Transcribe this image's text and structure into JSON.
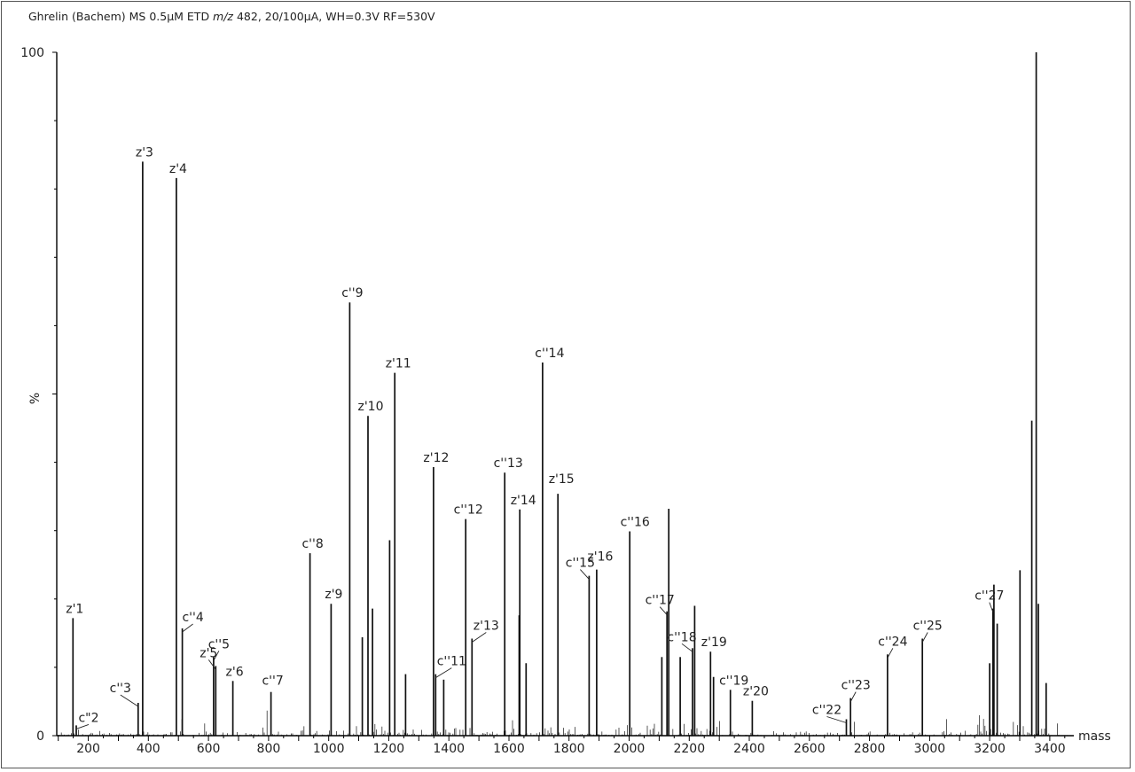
{
  "title_parts": {
    "pre": "Ghrelin (Bachem) MS 0.5µM ETD ",
    "mz": "m/z",
    "post": " 482, 20/100µA, WH=0.3V RF=530V"
  },
  "chart_data": {
    "type": "bar",
    "title": "Ghrelin (Bachem) MS 0.5µM ETD m/z 482, 20/100µA, WH=0.3V RF=530V",
    "xlabel": "mass",
    "ylabel": "%",
    "xlim": [
      95,
      3480
    ],
    "ylim": [
      0,
      100
    ],
    "x_ticks": [
      200,
      400,
      600,
      800,
      1000,
      1200,
      1400,
      1600,
      1800,
      2000,
      2200,
      2400,
      2600,
      2800,
      3000,
      3200,
      3400
    ],
    "y_tick_labels": [
      {
        "value": 100,
        "label": "100"
      },
      {
        "value": 50,
        "label": "%"
      },
      {
        "value": 0,
        "label": "0"
      }
    ],
    "labeled_peaks": [
      {
        "label": "z'1",
        "mass": 149,
        "intensity": 17.2
      },
      {
        "label": "c\"2",
        "mass": 160,
        "intensity": 1.5
      },
      {
        "label": "c''3",
        "mass": 366,
        "intensity": 4.8
      },
      {
        "label": "z'3",
        "mass": 381,
        "intensity": 84.0
      },
      {
        "label": "z'4",
        "mass": 493,
        "intensity": 81.6
      },
      {
        "label": "c''4",
        "mass": 513,
        "intensity": 15.7
      },
      {
        "label": "c''5",
        "mass": 617,
        "intensity": 11.5
      },
      {
        "label": "z'5",
        "mass": 624,
        "intensity": 10.2
      },
      {
        "label": "z'6",
        "mass": 681,
        "intensity": 8.0
      },
      {
        "label": "c''7",
        "mass": 808,
        "intensity": 6.4
      },
      {
        "label": "c''8",
        "mass": 938,
        "intensity": 26.7
      },
      {
        "label": "z'9",
        "mass": 1008,
        "intensity": 19.3
      },
      {
        "label": "c''9",
        "mass": 1070,
        "intensity": 63.4
      },
      {
        "label": "z'10",
        "mass": 1131,
        "intensity": 46.8
      },
      {
        "label": "z'11",
        "mass": 1220,
        "intensity": 53.1
      },
      {
        "label": "z'12",
        "mass": 1349,
        "intensity": 39.3
      },
      {
        "label": "c''11",
        "mass": 1356,
        "intensity": 9.0
      },
      {
        "label": "c''12",
        "mass": 1456,
        "intensity": 31.7
      },
      {
        "label": "z'13",
        "mass": 1477,
        "intensity": 14.2
      },
      {
        "label": "c''13",
        "mass": 1586,
        "intensity": 38.5
      },
      {
        "label": "z'14",
        "mass": 1636,
        "intensity": 33.1
      },
      {
        "label": "c''14",
        "mass": 1712,
        "intensity": 54.6
      },
      {
        "label": "z'15",
        "mass": 1763,
        "intensity": 35.4
      },
      {
        "label": "c''15",
        "mass": 1867,
        "intensity": 23.4
      },
      {
        "label": "z'16",
        "mass": 1892,
        "intensity": 24.3
      },
      {
        "label": "c''16",
        "mass": 2002,
        "intensity": 29.9
      },
      {
        "label": "c''17",
        "mass": 2126,
        "intensity": 18.2
      },
      {
        "label": "c''18",
        "mass": 2211,
        "intensity": 12.8
      },
      {
        "label": "z'19",
        "mass": 2271,
        "intensity": 12.3
      },
      {
        "label": "c''19",
        "mass": 2337,
        "intensity": 6.7
      },
      {
        "label": "z'20",
        "mass": 2410,
        "intensity": 5.1
      },
      {
        "label": "c''22",
        "mass": 2723,
        "intensity": 2.4
      },
      {
        "label": "c''23",
        "mass": 2737,
        "intensity": 5.5
      },
      {
        "label": "c''24",
        "mass": 2860,
        "intensity": 11.9
      },
      {
        "label": "c''25",
        "mass": 2976,
        "intensity": 14.2
      },
      {
        "label": "c''27",
        "mass": 3211,
        "intensity": 18.6
      }
    ],
    "other_peaks": [
      {
        "mass": 1112,
        "intensity": 14.4
      },
      {
        "mass": 1146,
        "intensity": 18.6
      },
      {
        "mass": 1203,
        "intensity": 28.6
      },
      {
        "mass": 1256,
        "intensity": 9.0
      },
      {
        "mass": 1383,
        "intensity": 8.2
      },
      {
        "mass": 1634,
        "intensity": 17.6
      },
      {
        "mass": 1657,
        "intensity": 10.6
      },
      {
        "mass": 2109,
        "intensity": 11.5
      },
      {
        "mass": 2132,
        "intensity": 33.2
      },
      {
        "mass": 2170,
        "intensity": 11.5
      },
      {
        "mass": 2218,
        "intensity": 19.0
      },
      {
        "mass": 2281,
        "intensity": 8.6
      },
      {
        "mass": 3200,
        "intensity": 10.6
      },
      {
        "mass": 3214,
        "intensity": 22.1
      },
      {
        "mass": 3225,
        "intensity": 16.4
      },
      {
        "mass": 3301,
        "intensity": 24.2
      },
      {
        "mass": 3340,
        "intensity": 46.1
      },
      {
        "mass": 3355,
        "intensity": 100
      },
      {
        "mass": 3362,
        "intensity": 19.3
      },
      {
        "mass": 3388,
        "intensity": 7.7
      }
    ]
  }
}
